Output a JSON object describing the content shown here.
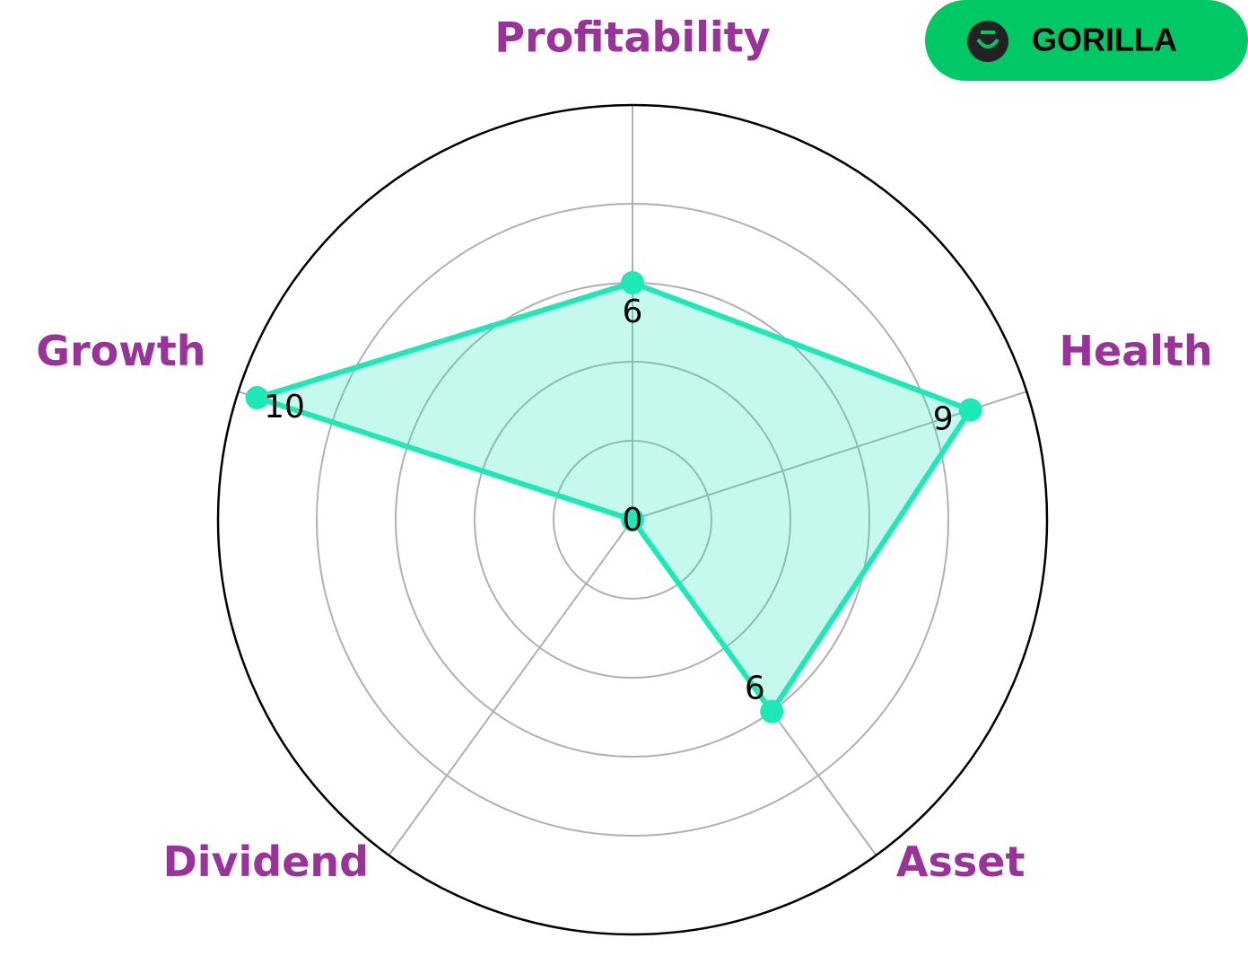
{
  "brand": "GORILLA",
  "chart_data": {
    "type": "radar",
    "categories": [
      "Profitability",
      "Health",
      "Asset",
      "Dividend",
      "Growth"
    ],
    "values": [
      6,
      9,
      6,
      0,
      10
    ],
    "color": "#1de9b6",
    "label_color": "#993399",
    "ylim": [
      0,
      10.5
    ],
    "yticks": [
      2,
      4,
      6,
      8
    ],
    "grid": true
  }
}
